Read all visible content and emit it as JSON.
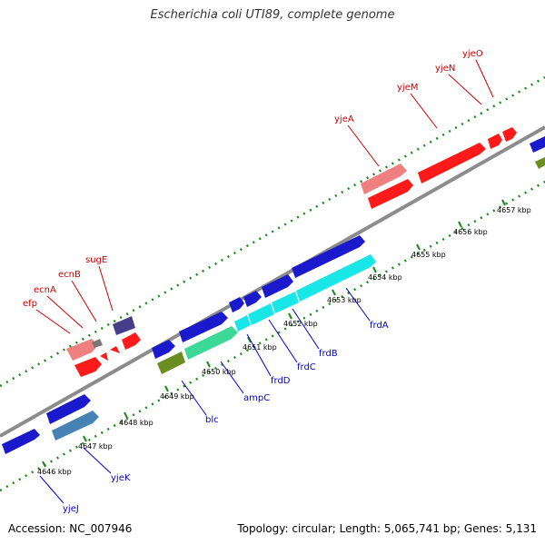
{
  "title": "Escherichia coli UTI89, complete genome",
  "footer": {
    "accession": "Accession: NC_007946",
    "topology": "Topology: circular; Length: 5,065,741 bp; Genes: 5,131"
  },
  "colors": {
    "backbone": "#8c8c8c",
    "tick_dots": "#1a8a1a",
    "forward_label": "#cc0000",
    "reverse_label": "#0000cc"
  },
  "scale_ticks": [
    {
      "label": "4646 kbp"
    },
    {
      "label": "4647 kbp"
    },
    {
      "label": "4648 kbp"
    },
    {
      "label": "4649 kbp"
    },
    {
      "label": "4650 kbp"
    },
    {
      "label": "4651 kbp"
    },
    {
      "label": "4652 kbp"
    },
    {
      "label": "4653 kbp"
    },
    {
      "label": "4654 kbp"
    },
    {
      "label": "4655 kbp"
    },
    {
      "label": "4656 kbp"
    },
    {
      "label": "4657 kbp"
    }
  ],
  "forward_labels": [
    {
      "name": "efp"
    },
    {
      "name": "ecnA"
    },
    {
      "name": "ecnB"
    },
    {
      "name": "sugE"
    },
    {
      "name": "yjeA"
    },
    {
      "name": "yjeM"
    },
    {
      "name": "yjeN"
    },
    {
      "name": "yjeO"
    }
  ],
  "reverse_labels": [
    {
      "name": "yjeJ"
    },
    {
      "name": "yjeK"
    },
    {
      "name": "blc"
    },
    {
      "name": "ampC"
    },
    {
      "name": "frdD"
    },
    {
      "name": "frdC"
    },
    {
      "name": "frdB"
    },
    {
      "name": "frdA"
    }
  ]
}
